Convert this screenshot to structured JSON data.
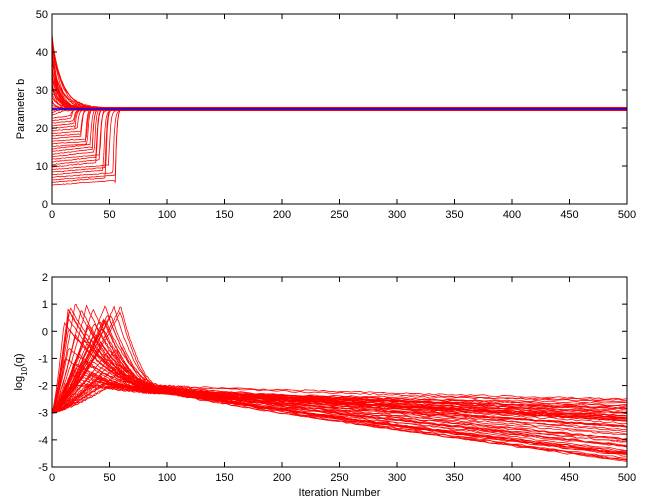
{
  "chart_data": [
    {
      "type": "line",
      "ylabel": "Parameter b",
      "xlabel": "",
      "xlim": [
        0,
        500
      ],
      "ylim": [
        0,
        50
      ],
      "xticks": [
        0,
        50,
        100,
        150,
        200,
        250,
        300,
        350,
        400,
        450,
        500
      ],
      "yticks": [
        0,
        10,
        20,
        30,
        40,
        50
      ],
      "grid": false,
      "box": true,
      "line_color": "#ff0000",
      "reference_line": {
        "y": 25,
        "color": "#0000ff"
      },
      "traces": {
        "count": 60,
        "iterations": 500,
        "start_range": [
          5,
          45
        ],
        "converges_to": 25,
        "convergence_band": [
          24.5,
          26
        ],
        "high_start_settle_by_iteration": 30,
        "low_start_jump_iterations": [
          15,
          62
        ]
      }
    },
    {
      "type": "line",
      "ylabel": "log10(q)",
      "ylabel_parts": {
        "base": "log",
        "sub": "10",
        "arg": "(q)"
      },
      "xlabel": "Iteration Number",
      "xlim": [
        0,
        500
      ],
      "ylim": [
        -5,
        2
      ],
      "xticks": [
        0,
        50,
        100,
        150,
        200,
        250,
        300,
        350,
        400,
        450,
        500
      ],
      "yticks": [
        -5,
        -4,
        -3,
        -2,
        -1,
        0,
        1,
        2
      ],
      "grid": false,
      "box": true,
      "line_color": "#ff0000",
      "traces": {
        "count": 60,
        "iterations": 500,
        "start_value": -3,
        "peak_iterations": [
          8,
          60
        ],
        "peak_range": [
          -2,
          1.1
        ],
        "merge_iteration": 100,
        "merge_band": [
          -2.3,
          -2.0
        ],
        "end_range": [
          -4.8,
          -2.5
        ]
      }
    }
  ]
}
